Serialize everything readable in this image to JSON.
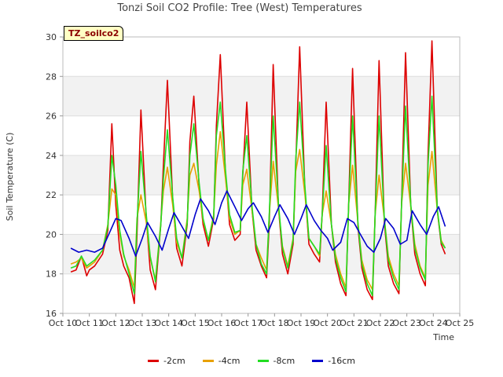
{
  "chart_data": {
    "type": "line",
    "title": "Tonzi Soil CO2 Profile: Tree (West) Temperatures",
    "xlabel": "Time",
    "ylabel": "Soil Temperature (C)",
    "ylim": [
      16,
      30
    ],
    "xlim": [
      10,
      25
    ],
    "yticks": [
      16,
      18,
      20,
      22,
      24,
      26,
      28,
      30
    ],
    "xticks": [
      {
        "value": 10,
        "label": "Oct 10"
      },
      {
        "value": 11,
        "label": "Oct 11"
      },
      {
        "value": 12,
        "label": "Oct 12"
      },
      {
        "value": 13,
        "label": "Oct 13"
      },
      {
        "value": 14,
        "label": "Oct 14"
      },
      {
        "value": 15,
        "label": "Oct 15"
      },
      {
        "value": 16,
        "label": "Oct 16"
      },
      {
        "value": 17,
        "label": "Oct 17"
      },
      {
        "value": 18,
        "label": "Oct 18"
      },
      {
        "value": 19,
        "label": "Oct 19"
      },
      {
        "value": 20,
        "label": "Oct 20"
      },
      {
        "value": 21,
        "label": "Oct 21"
      },
      {
        "value": 22,
        "label": "Oct 22"
      },
      {
        "value": 23,
        "label": "Oct 23"
      },
      {
        "value": 24,
        "label": "Oct 24"
      },
      {
        "value": 25,
        "label": "Oct 25"
      }
    ],
    "grid": true,
    "badge": "TZ_soilco2",
    "legend_position": "bottom",
    "series": [
      {
        "name": "-2cm",
        "color": "#dd0000",
        "x": [
          10.3,
          10.5,
          10.7,
          10.9,
          11.0,
          11.2,
          11.5,
          11.7,
          11.85,
          12.0,
          12.15,
          12.3,
          12.5,
          12.7,
          12.8,
          12.95,
          13.15,
          13.3,
          13.5,
          13.7,
          13.8,
          13.95,
          14.15,
          14.3,
          14.5,
          14.7,
          14.8,
          14.95,
          15.15,
          15.3,
          15.5,
          15.7,
          15.8,
          15.95,
          16.15,
          16.3,
          16.5,
          16.7,
          16.8,
          16.95,
          17.15,
          17.3,
          17.5,
          17.7,
          17.8,
          17.95,
          18.15,
          18.3,
          18.5,
          18.7,
          18.8,
          18.95,
          19.15,
          19.3,
          19.5,
          19.7,
          19.8,
          19.95,
          20.15,
          20.3,
          20.5,
          20.7,
          20.8,
          20.95,
          21.15,
          21.3,
          21.5,
          21.7,
          21.8,
          21.95,
          22.15,
          22.3,
          22.5,
          22.7,
          22.8,
          22.95,
          23.15,
          23.3,
          23.5,
          23.7,
          23.8,
          23.95,
          24.15,
          24.3,
          24.45
        ],
        "y": [
          18.1,
          18.2,
          18.9,
          17.9,
          18.2,
          18.4,
          19.0,
          20.2,
          25.6,
          21.5,
          19.2,
          18.4,
          17.8,
          16.5,
          20.0,
          26.3,
          20.8,
          18.2,
          17.2,
          20.5,
          23.5,
          27.8,
          21.8,
          19.3,
          18.4,
          20.5,
          24.7,
          27.0,
          22.4,
          20.5,
          19.4,
          20.8,
          25.5,
          29.1,
          23.0,
          20.5,
          19.7,
          20.0,
          23.0,
          26.7,
          21.2,
          19.2,
          18.4,
          17.8,
          20.5,
          28.6,
          21.3,
          19.0,
          18.0,
          19.5,
          23.5,
          29.5,
          22.2,
          19.5,
          19.0,
          18.6,
          21.0,
          26.7,
          20.5,
          18.6,
          17.5,
          16.9,
          21.5,
          28.4,
          20.4,
          18.3,
          17.2,
          16.7,
          21.0,
          28.8,
          20.6,
          18.4,
          17.5,
          17.0,
          21.5,
          29.2,
          21.4,
          19.0,
          18.0,
          17.4,
          24.0,
          29.8,
          21.2,
          19.5,
          19.0
        ]
      },
      {
        "name": "-4cm",
        "color": "#e8a000",
        "x": [
          10.3,
          10.5,
          10.7,
          10.9,
          11.0,
          11.2,
          11.5,
          11.7,
          11.85,
          12.0,
          12.15,
          12.3,
          12.5,
          12.7,
          12.8,
          12.95,
          13.15,
          13.3,
          13.5,
          13.7,
          13.8,
          13.95,
          14.15,
          14.3,
          14.5,
          14.7,
          14.8,
          14.95,
          15.15,
          15.3,
          15.5,
          15.7,
          15.8,
          15.95,
          16.15,
          16.3,
          16.5,
          16.7,
          16.8,
          16.95,
          17.15,
          17.3,
          17.5,
          17.7,
          17.8,
          17.95,
          18.15,
          18.3,
          18.5,
          18.7,
          18.8,
          18.95,
          19.15,
          19.3,
          19.5,
          19.7,
          19.8,
          19.95,
          20.15,
          20.3,
          20.5,
          20.7,
          20.8,
          20.95,
          21.15,
          21.3,
          21.5,
          21.7,
          21.8,
          21.95,
          22.15,
          22.3,
          22.5,
          22.7,
          22.8,
          22.95,
          23.15,
          23.3,
          23.5,
          23.7,
          23.8,
          23.95,
          24.15,
          24.3,
          24.45
        ],
        "y": [
          18.5,
          18.6,
          18.8,
          18.3,
          18.4,
          18.6,
          19.2,
          20.5,
          22.3,
          22.0,
          20.0,
          18.9,
          18.2,
          17.3,
          20.8,
          22.0,
          20.6,
          18.8,
          17.7,
          20.6,
          22.2,
          23.4,
          21.5,
          19.6,
          18.8,
          20.8,
          23.0,
          23.6,
          22.2,
          20.7,
          19.7,
          21.0,
          23.5,
          25.2,
          22.8,
          20.8,
          20.0,
          20.2,
          22.5,
          23.3,
          21.2,
          19.5,
          18.8,
          18.2,
          21.0,
          23.7,
          21.3,
          19.4,
          18.4,
          19.8,
          23.2,
          24.3,
          22.0,
          19.8,
          19.4,
          18.9,
          21.0,
          22.2,
          20.5,
          19.0,
          18.0,
          17.3,
          21.5,
          23.5,
          20.6,
          18.7,
          17.7,
          17.2,
          21.0,
          23.0,
          20.8,
          18.9,
          18.0,
          17.4,
          21.5,
          23.6,
          21.4,
          19.5,
          18.4,
          17.8,
          22.5,
          24.2,
          21.2,
          19.7,
          19.3
        ]
      },
      {
        "name": "-8cm",
        "color": "#22dd22",
        "x": [
          10.3,
          10.5,
          10.7,
          10.9,
          11.0,
          11.2,
          11.5,
          11.7,
          11.85,
          12.0,
          12.15,
          12.3,
          12.5,
          12.7,
          12.8,
          12.95,
          13.15,
          13.3,
          13.5,
          13.7,
          13.8,
          13.95,
          14.15,
          14.3,
          14.5,
          14.7,
          14.8,
          14.95,
          15.15,
          15.3,
          15.5,
          15.7,
          15.8,
          15.95,
          16.15,
          16.3,
          16.5,
          16.7,
          16.8,
          16.95,
          17.15,
          17.3,
          17.5,
          17.7,
          17.8,
          17.95,
          18.15,
          18.3,
          18.5,
          18.7,
          18.8,
          18.95,
          19.15,
          19.3,
          19.5,
          19.7,
          19.8,
          19.95,
          20.15,
          20.3,
          20.5,
          20.7,
          20.8,
          20.95,
          21.15,
          21.3,
          21.5,
          21.7,
          21.8,
          21.95,
          22.15,
          22.3,
          22.5,
          22.7,
          22.8,
          22.95,
          23.15,
          23.3,
          23.5,
          23.7,
          23.8,
          23.95,
          24.15,
          24.3,
          24.45
        ],
        "y": [
          18.3,
          18.4,
          18.9,
          18.4,
          18.5,
          18.7,
          19.2,
          20.4,
          24.0,
          22.5,
          20.2,
          19.0,
          18.0,
          17.0,
          20.6,
          24.2,
          21.0,
          18.9,
          17.6,
          20.5,
          22.8,
          25.3,
          21.9,
          19.8,
          18.8,
          20.6,
          24.0,
          25.6,
          22.6,
          20.8,
          19.7,
          20.9,
          25.0,
          26.7,
          23.2,
          21.0,
          20.1,
          20.2,
          23.2,
          25.0,
          21.4,
          19.5,
          18.5,
          18.0,
          21.0,
          26.0,
          21.5,
          19.3,
          18.3,
          19.7,
          23.8,
          26.7,
          22.4,
          19.8,
          19.4,
          19.0,
          21.0,
          24.5,
          20.5,
          18.8,
          17.8,
          17.1,
          21.5,
          26.0,
          20.6,
          18.5,
          17.5,
          16.9,
          21.0,
          26.0,
          20.8,
          18.7,
          17.8,
          17.2,
          21.5,
          26.5,
          21.5,
          19.3,
          18.3,
          17.7,
          23.5,
          27.0,
          21.3,
          19.6,
          19.3
        ]
      },
      {
        "name": "-16cm",
        "color": "#0000cc",
        "x": [
          10.3,
          10.6,
          10.9,
          11.2,
          11.5,
          11.8,
          12.0,
          12.2,
          12.5,
          12.75,
          13.0,
          13.2,
          13.5,
          13.75,
          14.0,
          14.2,
          14.5,
          14.75,
          15.0,
          15.2,
          15.5,
          15.75,
          16.0,
          16.2,
          16.5,
          16.75,
          17.0,
          17.2,
          17.5,
          17.75,
          18.0,
          18.2,
          18.5,
          18.75,
          19.0,
          19.2,
          19.5,
          19.75,
          20.0,
          20.2,
          20.5,
          20.75,
          21.0,
          21.2,
          21.5,
          21.75,
          22.0,
          22.2,
          22.5,
          22.75,
          23.0,
          23.2,
          23.5,
          23.75,
          24.0,
          24.2,
          24.45
        ],
        "y": [
          19.3,
          19.1,
          19.2,
          19.1,
          19.3,
          20.2,
          20.8,
          20.7,
          19.8,
          18.9,
          19.8,
          20.6,
          19.9,
          19.2,
          20.3,
          21.1,
          20.4,
          19.8,
          21.0,
          21.8,
          21.2,
          20.5,
          21.6,
          22.2,
          21.4,
          20.7,
          21.3,
          21.6,
          20.9,
          20.1,
          20.9,
          21.5,
          20.8,
          20.0,
          20.8,
          21.5,
          20.7,
          20.2,
          19.8,
          19.2,
          19.6,
          20.8,
          20.6,
          20.1,
          19.4,
          19.1,
          19.8,
          20.8,
          20.3,
          19.5,
          19.7,
          21.2,
          20.5,
          20.0,
          20.9,
          21.4,
          20.4
        ]
      }
    ]
  }
}
